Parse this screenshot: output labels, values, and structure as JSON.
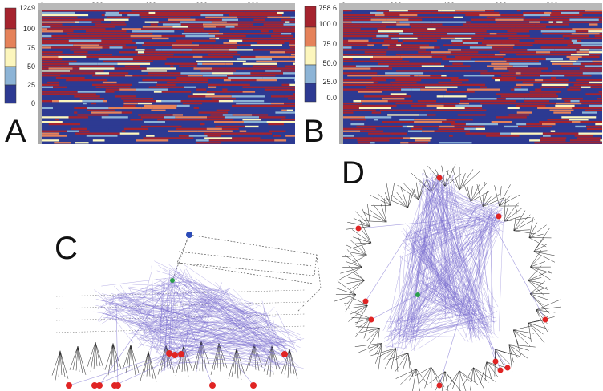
{
  "panels": {
    "a": {
      "letter": "A",
      "legend_labels": [
        "1249",
        "100",
        "75",
        "50",
        "25",
        "0"
      ],
      "axis_ticks": [
        "0",
        "200",
        "400",
        "600",
        "800"
      ],
      "colors": [
        "#a5232e",
        "#e5825a",
        "#fcf6bd",
        "#8db4d6",
        "#2d3a92"
      ]
    },
    "b": {
      "letter": "B",
      "legend_labels": [
        "758.6",
        "100.0",
        "75.0",
        "50.0",
        "25.0",
        "0.0"
      ],
      "axis_ticks": [
        "0",
        "200",
        "400",
        "600",
        "800"
      ],
      "colors": [
        "#a5232e",
        "#e5825a",
        "#fcf6bd",
        "#8db4d6",
        "#2d3a92"
      ]
    },
    "c": {
      "letter": "C"
    },
    "d": {
      "letter": "D"
    }
  },
  "graph_colors": {
    "edge": "#7b6fd0",
    "tree": "#222222",
    "highlight_node": "#e02424",
    "root_node": "#2a9d4a",
    "extra_node": "#2b4bb8"
  }
}
